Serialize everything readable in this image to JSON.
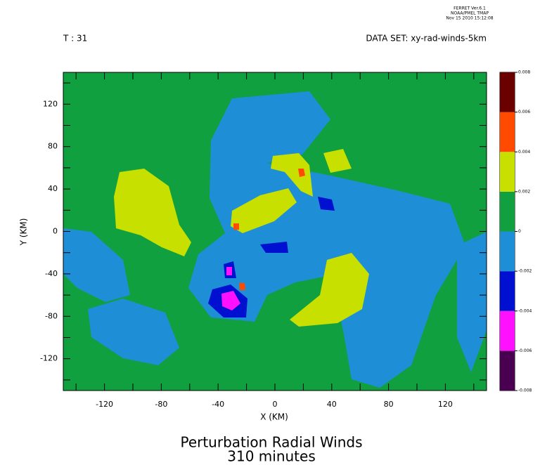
{
  "header": {
    "program": "FERRET Ver.6.1",
    "lab": "NOAA/PMEL TMAP",
    "timestamp": "Nov 15 2010 15:12:08"
  },
  "chart_data": {
    "type": "contour",
    "time_label": "T : 31",
    "dataset_label": "DATA SET: xy-rad-winds-5km",
    "title": "Perturbation Radial Winds",
    "subtitle": "310 minutes",
    "x_label": "X (KM)",
    "y_label": "Y (KM)",
    "xlim": [
      -149,
      149
    ],
    "ylim": [
      -150,
      150
    ],
    "xticks": [
      -120,
      -80,
      -40,
      0,
      40,
      80,
      120
    ],
    "yticks": [
      -120,
      -80,
      -40,
      0,
      40,
      80,
      120
    ],
    "xminor_ticks": [
      -140,
      -100,
      -60,
      -20,
      20,
      60,
      100,
      140
    ],
    "yminor_ticks": [
      -140,
      -100,
      -60,
      -20,
      20,
      60,
      100,
      140
    ],
    "levels": [
      -0.008,
      -0.006,
      -0.004,
      -0.002,
      0,
      0.002,
      0.004,
      0.006,
      0.008
    ],
    "level_colors": [
      "#4a0050",
      "#ff10ff",
      "#0010d0",
      "#1e8fd6",
      "#10a040",
      "#c8e000",
      "#ff4a00",
      "#6a0000"
    ]
  }
}
